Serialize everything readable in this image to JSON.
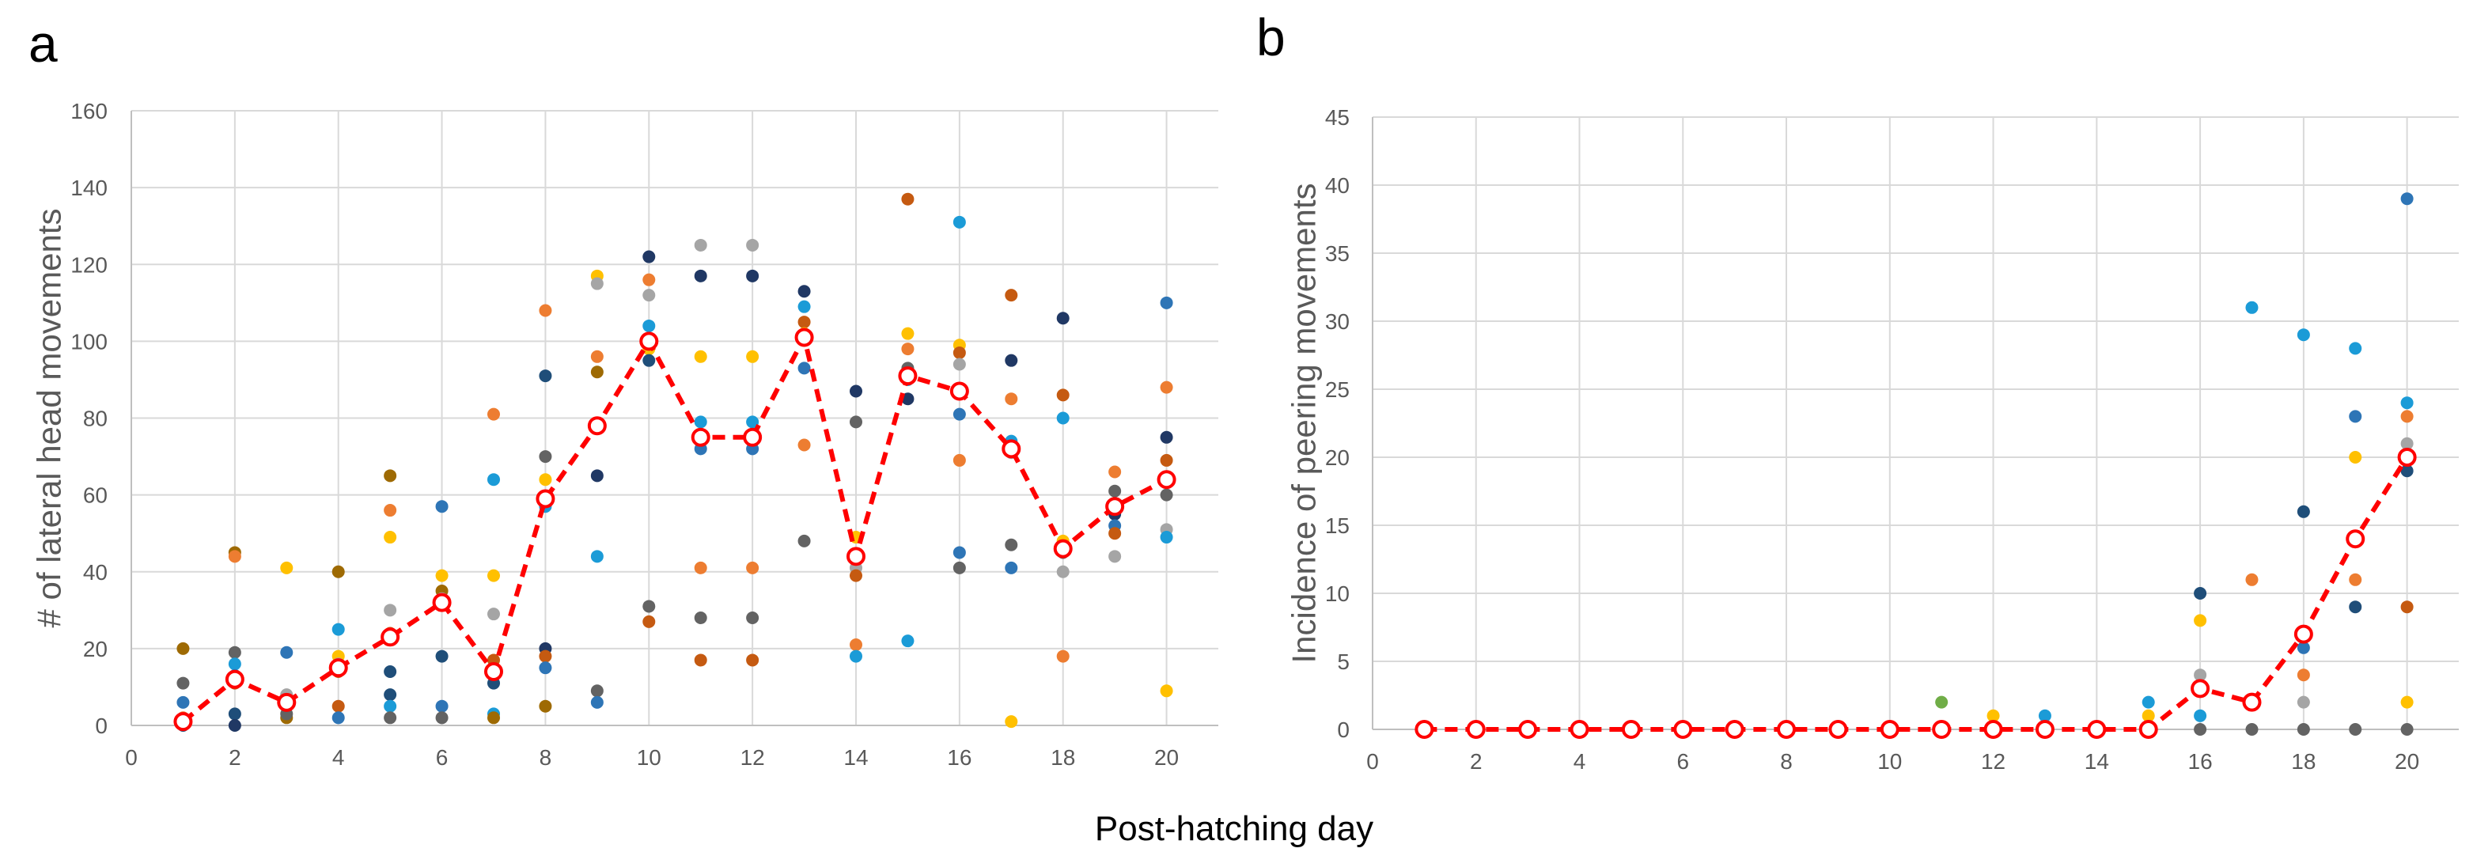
{
  "figure": {
    "xlabel": "Post-hatching day",
    "colors": {
      "mean": "#ff0000",
      "palette": [
        "#1f4e79",
        "#2e75b6",
        "#1b9bd7",
        "#ed7d31",
        "#c55a11",
        "#ffc000",
        "#a5a5a5",
        "#636363",
        "#9e6a03",
        "#203864",
        "#70ad47"
      ]
    }
  },
  "chart_data": [
    {
      "panel": "a",
      "type": "scatter",
      "title": "",
      "xlabel": "Post-hatching day",
      "ylabel": "# of lateral head movements",
      "xlim": [
        0,
        21
      ],
      "ylim": [
        0,
        160
      ],
      "xticks": [
        0,
        2,
        4,
        6,
        8,
        10,
        12,
        14,
        16,
        18,
        20
      ],
      "yticks": [
        0,
        20,
        40,
        60,
        80,
        100,
        120,
        140,
        160
      ],
      "grid": true,
      "mean": {
        "name": "Mean",
        "x": [
          1,
          2,
          3,
          4,
          5,
          6,
          7,
          8,
          9,
          10,
          11,
          12,
          13,
          14,
          15,
          16,
          17,
          18,
          19,
          20
        ],
        "y": [
          1,
          12,
          6,
          15,
          23,
          32,
          14,
          59,
          78,
          100,
          75,
          75,
          101,
          44,
          91,
          87,
          72,
          46,
          57,
          64
        ]
      },
      "points": [
        {
          "x": 1,
          "y": 20,
          "c": 8
        },
        {
          "x": 1,
          "y": 11,
          "c": 7
        },
        {
          "x": 1,
          "y": 6,
          "c": 1
        },
        {
          "x": 1,
          "y": 2,
          "c": 3
        },
        {
          "x": 1,
          "y": 0,
          "c": 0
        },
        {
          "x": 1,
          "y": 1,
          "c": 5
        },
        {
          "x": 2,
          "y": 45,
          "c": 8
        },
        {
          "x": 2,
          "y": 44,
          "c": 3
        },
        {
          "x": 2,
          "y": 19,
          "c": 7
        },
        {
          "x": 2,
          "y": 16,
          "c": 2
        },
        {
          "x": 2,
          "y": 13,
          "c": 1
        },
        {
          "x": 2,
          "y": 11,
          "c": 4
        },
        {
          "x": 2,
          "y": 3,
          "c": 0
        },
        {
          "x": 2,
          "y": 0,
          "c": 9
        },
        {
          "x": 3,
          "y": 41,
          "c": 5
        },
        {
          "x": 3,
          "y": 19,
          "c": 1
        },
        {
          "x": 3,
          "y": 8,
          "c": 6
        },
        {
          "x": 3,
          "y": 5,
          "c": 4
        },
        {
          "x": 3,
          "y": 2,
          "c": 8
        },
        {
          "x": 3,
          "y": 3,
          "c": 7
        },
        {
          "x": 4,
          "y": 40,
          "c": 8
        },
        {
          "x": 4,
          "y": 25,
          "c": 2
        },
        {
          "x": 4,
          "y": 18,
          "c": 5
        },
        {
          "x": 4,
          "y": 16,
          "c": 6
        },
        {
          "x": 4,
          "y": 14,
          "c": 4
        },
        {
          "x": 4,
          "y": 5,
          "c": 4
        },
        {
          "x": 4,
          "y": 2,
          "c": 1
        },
        {
          "x": 5,
          "y": 65,
          "c": 8
        },
        {
          "x": 5,
          "y": 56,
          "c": 3
        },
        {
          "x": 5,
          "y": 49,
          "c": 5
        },
        {
          "x": 5,
          "y": 30,
          "c": 6
        },
        {
          "x": 5,
          "y": 24,
          "c": 4
        },
        {
          "x": 5,
          "y": 14,
          "c": 0
        },
        {
          "x": 5,
          "y": 8,
          "c": 0
        },
        {
          "x": 5,
          "y": 5,
          "c": 2
        },
        {
          "x": 5,
          "y": 2,
          "c": 7
        },
        {
          "x": 6,
          "y": 57,
          "c": 1
        },
        {
          "x": 6,
          "y": 39,
          "c": 5
        },
        {
          "x": 6,
          "y": 35,
          "c": 8
        },
        {
          "x": 6,
          "y": 33,
          "c": 6
        },
        {
          "x": 6,
          "y": 18,
          "c": 0
        },
        {
          "x": 6,
          "y": 5,
          "c": 1
        },
        {
          "x": 6,
          "y": 2,
          "c": 7
        },
        {
          "x": 7,
          "y": 81,
          "c": 3
        },
        {
          "x": 7,
          "y": 64,
          "c": 2
        },
        {
          "x": 7,
          "y": 39,
          "c": 5
        },
        {
          "x": 7,
          "y": 29,
          "c": 6
        },
        {
          "x": 7,
          "y": 17,
          "c": 4
        },
        {
          "x": 7,
          "y": 11,
          "c": 0
        },
        {
          "x": 7,
          "y": 3,
          "c": 2
        },
        {
          "x": 7,
          "y": 2,
          "c": 8
        },
        {
          "x": 8,
          "y": 108,
          "c": 3
        },
        {
          "x": 8,
          "y": 91,
          "c": 0
        },
        {
          "x": 8,
          "y": 70,
          "c": 7
        },
        {
          "x": 8,
          "y": 64,
          "c": 5
        },
        {
          "x": 8,
          "y": 57,
          "c": 2
        },
        {
          "x": 8,
          "y": 20,
          "c": 9
        },
        {
          "x": 8,
          "y": 18,
          "c": 4
        },
        {
          "x": 8,
          "y": 15,
          "c": 1
        },
        {
          "x": 8,
          "y": 5,
          "c": 8
        },
        {
          "x": 9,
          "y": 117,
          "c": 5
        },
        {
          "x": 9,
          "y": 115,
          "c": 6
        },
        {
          "x": 9,
          "y": 96,
          "c": 3
        },
        {
          "x": 9,
          "y": 92,
          "c": 8
        },
        {
          "x": 9,
          "y": 65,
          "c": 9
        },
        {
          "x": 9,
          "y": 44,
          "c": 2
        },
        {
          "x": 9,
          "y": 9,
          "c": 7
        },
        {
          "x": 9,
          "y": 6,
          "c": 1
        },
        {
          "x": 10,
          "y": 122,
          "c": 9
        },
        {
          "x": 10,
          "y": 116,
          "c": 3
        },
        {
          "x": 10,
          "y": 112,
          "c": 6
        },
        {
          "x": 10,
          "y": 104,
          "c": 2
        },
        {
          "x": 10,
          "y": 98,
          "c": 5
        },
        {
          "x": 10,
          "y": 95,
          "c": 0
        },
        {
          "x": 10,
          "y": 31,
          "c": 7
        },
        {
          "x": 10,
          "y": 27,
          "c": 4
        },
        {
          "x": 11,
          "y": 125,
          "c": 6
        },
        {
          "x": 11,
          "y": 117,
          "c": 9
        },
        {
          "x": 11,
          "y": 96,
          "c": 5
        },
        {
          "x": 11,
          "y": 79,
          "c": 2
        },
        {
          "x": 11,
          "y": 72,
          "c": 1
        },
        {
          "x": 11,
          "y": 41,
          "c": 3
        },
        {
          "x": 11,
          "y": 28,
          "c": 7
        },
        {
          "x": 11,
          "y": 17,
          "c": 4
        },
        {
          "x": 12,
          "y": 125,
          "c": 6
        },
        {
          "x": 12,
          "y": 117,
          "c": 9
        },
        {
          "x": 12,
          "y": 96,
          "c": 5
        },
        {
          "x": 12,
          "y": 79,
          "c": 2
        },
        {
          "x": 12,
          "y": 72,
          "c": 1
        },
        {
          "x": 12,
          "y": 41,
          "c": 3
        },
        {
          "x": 12,
          "y": 28,
          "c": 7
        },
        {
          "x": 12,
          "y": 17,
          "c": 4
        },
        {
          "x": 13,
          "y": 113,
          "c": 9
        },
        {
          "x": 13,
          "y": 109,
          "c": 2
        },
        {
          "x": 13,
          "y": 105,
          "c": 4
        },
        {
          "x": 13,
          "y": 102,
          "c": 5
        },
        {
          "x": 13,
          "y": 93,
          "c": 1
        },
        {
          "x": 13,
          "y": 73,
          "c": 3
        },
        {
          "x": 13,
          "y": 48,
          "c": 7
        },
        {
          "x": 14,
          "y": 87,
          "c": 9
        },
        {
          "x": 14,
          "y": 79,
          "c": 7
        },
        {
          "x": 14,
          "y": 49,
          "c": 5
        },
        {
          "x": 14,
          "y": 41,
          "c": 6
        },
        {
          "x": 14,
          "y": 39,
          "c": 4
        },
        {
          "x": 14,
          "y": 21,
          "c": 3
        },
        {
          "x": 14,
          "y": 18,
          "c": 2
        },
        {
          "x": 15,
          "y": 137,
          "c": 4
        },
        {
          "x": 15,
          "y": 102,
          "c": 5
        },
        {
          "x": 15,
          "y": 98,
          "c": 3
        },
        {
          "x": 15,
          "y": 93,
          "c": 7
        },
        {
          "x": 15,
          "y": 90,
          "c": 2
        },
        {
          "x": 15,
          "y": 85,
          "c": 9
        },
        {
          "x": 15,
          "y": 22,
          "c": 2
        },
        {
          "x": 16,
          "y": 131,
          "c": 2
        },
        {
          "x": 16,
          "y": 99,
          "c": 5
        },
        {
          "x": 16,
          "y": 97,
          "c": 4
        },
        {
          "x": 16,
          "y": 94,
          "c": 6
        },
        {
          "x": 16,
          "y": 81,
          "c": 1
        },
        {
          "x": 16,
          "y": 69,
          "c": 3
        },
        {
          "x": 16,
          "y": 45,
          "c": 1
        },
        {
          "x": 16,
          "y": 41,
          "c": 7
        },
        {
          "x": 17,
          "y": 112,
          "c": 4
        },
        {
          "x": 17,
          "y": 95,
          "c": 9
        },
        {
          "x": 17,
          "y": 85,
          "c": 3
        },
        {
          "x": 17,
          "y": 74,
          "c": 2
        },
        {
          "x": 17,
          "y": 71,
          "c": 6
        },
        {
          "x": 17,
          "y": 47,
          "c": 7
        },
        {
          "x": 17,
          "y": 41,
          "c": 1
        },
        {
          "x": 17,
          "y": 1,
          "c": 5
        },
        {
          "x": 18,
          "y": 106,
          "c": 9
        },
        {
          "x": 18,
          "y": 86,
          "c": 4
        },
        {
          "x": 18,
          "y": 80,
          "c": 2
        },
        {
          "x": 18,
          "y": 48,
          "c": 5
        },
        {
          "x": 18,
          "y": 45,
          "c": 7
        },
        {
          "x": 18,
          "y": 40,
          "c": 6
        },
        {
          "x": 18,
          "y": 18,
          "c": 3
        },
        {
          "x": 19,
          "y": 66,
          "c": 3
        },
        {
          "x": 19,
          "y": 61,
          "c": 7
        },
        {
          "x": 19,
          "y": 55,
          "c": 9
        },
        {
          "x": 19,
          "y": 52,
          "c": 1
        },
        {
          "x": 19,
          "y": 50,
          "c": 4
        },
        {
          "x": 19,
          "y": 44,
          "c": 6
        },
        {
          "x": 20,
          "y": 110,
          "c": 1
        },
        {
          "x": 20,
          "y": 88,
          "c": 3
        },
        {
          "x": 20,
          "y": 75,
          "c": 9
        },
        {
          "x": 20,
          "y": 69,
          "c": 4
        },
        {
          "x": 20,
          "y": 60,
          "c": 7
        },
        {
          "x": 20,
          "y": 51,
          "c": 6
        },
        {
          "x": 20,
          "y": 49,
          "c": 2
        },
        {
          "x": 20,
          "y": 9,
          "c": 5
        }
      ]
    },
    {
      "panel": "b",
      "type": "scatter",
      "title": "",
      "xlabel": "Post-hatching day",
      "ylabel": "Incidence of peering movements",
      "xlim": [
        0,
        21
      ],
      "ylim": [
        0,
        45
      ],
      "xticks": [
        0,
        2,
        4,
        6,
        8,
        10,
        12,
        14,
        16,
        18,
        20
      ],
      "yticks": [
        0,
        5,
        10,
        15,
        20,
        25,
        30,
        35,
        40,
        45
      ],
      "grid": true,
      "mean": {
        "name": "Mean",
        "x": [
          1,
          2,
          3,
          4,
          5,
          6,
          7,
          8,
          9,
          10,
          11,
          12,
          13,
          14,
          15,
          16,
          17,
          18,
          19,
          20
        ],
        "y": [
          0,
          0,
          0,
          0,
          0,
          0,
          0,
          0,
          0,
          0,
          0,
          0,
          0,
          0,
          0,
          3,
          2,
          7,
          14,
          20
        ]
      },
      "points": [
        {
          "x": 1,
          "y": 0,
          "c": 2
        },
        {
          "x": 2,
          "y": 0,
          "c": 2
        },
        {
          "x": 3,
          "y": 0,
          "c": 2
        },
        {
          "x": 4,
          "y": 0,
          "c": 2
        },
        {
          "x": 5,
          "y": 0,
          "c": 2
        },
        {
          "x": 6,
          "y": 0,
          "c": 2
        },
        {
          "x": 7,
          "y": 0,
          "c": 2
        },
        {
          "x": 8,
          "y": 0,
          "c": 2
        },
        {
          "x": 9,
          "y": 0,
          "c": 2
        },
        {
          "x": 10,
          "y": 0,
          "c": 2
        },
        {
          "x": 11,
          "y": 2,
          "c": 10
        },
        {
          "x": 11,
          "y": 0,
          "c": 2
        },
        {
          "x": 12,
          "y": 1,
          "c": 5
        },
        {
          "x": 12,
          "y": 0,
          "c": 7
        },
        {
          "x": 13,
          "y": 1,
          "c": 2
        },
        {
          "x": 13,
          "y": 0,
          "c": 7
        },
        {
          "x": 14,
          "y": 0,
          "c": 7
        },
        {
          "x": 15,
          "y": 2,
          "c": 2
        },
        {
          "x": 15,
          "y": 1,
          "c": 5
        },
        {
          "x": 15,
          "y": 0,
          "c": 7
        },
        {
          "x": 16,
          "y": 10,
          "c": 0
        },
        {
          "x": 16,
          "y": 8,
          "c": 5
        },
        {
          "x": 16,
          "y": 4,
          "c": 6
        },
        {
          "x": 16,
          "y": 3,
          "c": 4
        },
        {
          "x": 16,
          "y": 1,
          "c": 2
        },
        {
          "x": 16,
          "y": 0,
          "c": 7
        },
        {
          "x": 17,
          "y": 31,
          "c": 2
        },
        {
          "x": 17,
          "y": 11,
          "c": 3
        },
        {
          "x": 17,
          "y": 2,
          "c": 9
        },
        {
          "x": 17,
          "y": 0,
          "c": 7
        },
        {
          "x": 18,
          "y": 29,
          "c": 2
        },
        {
          "x": 18,
          "y": 16,
          "c": 0
        },
        {
          "x": 18,
          "y": 7,
          "c": 4
        },
        {
          "x": 18,
          "y": 6,
          "c": 1
        },
        {
          "x": 18,
          "y": 4,
          "c": 3
        },
        {
          "x": 18,
          "y": 2,
          "c": 6
        },
        {
          "x": 18,
          "y": 0,
          "c": 7
        },
        {
          "x": 19,
          "y": 28,
          "c": 2
        },
        {
          "x": 19,
          "y": 23,
          "c": 1
        },
        {
          "x": 19,
          "y": 20,
          "c": 5
        },
        {
          "x": 19,
          "y": 14,
          "c": 6
        },
        {
          "x": 19,
          "y": 11,
          "c": 3
        },
        {
          "x": 19,
          "y": 9,
          "c": 0
        },
        {
          "x": 19,
          "y": 0,
          "c": 7
        },
        {
          "x": 20,
          "y": 39,
          "c": 1
        },
        {
          "x": 20,
          "y": 24,
          "c": 2
        },
        {
          "x": 20,
          "y": 23,
          "c": 3
        },
        {
          "x": 20,
          "y": 21,
          "c": 6
        },
        {
          "x": 20,
          "y": 19,
          "c": 0
        },
        {
          "x": 20,
          "y": 9,
          "c": 4
        },
        {
          "x": 20,
          "y": 2,
          "c": 5
        },
        {
          "x": 20,
          "y": 0,
          "c": 7
        }
      ]
    }
  ]
}
